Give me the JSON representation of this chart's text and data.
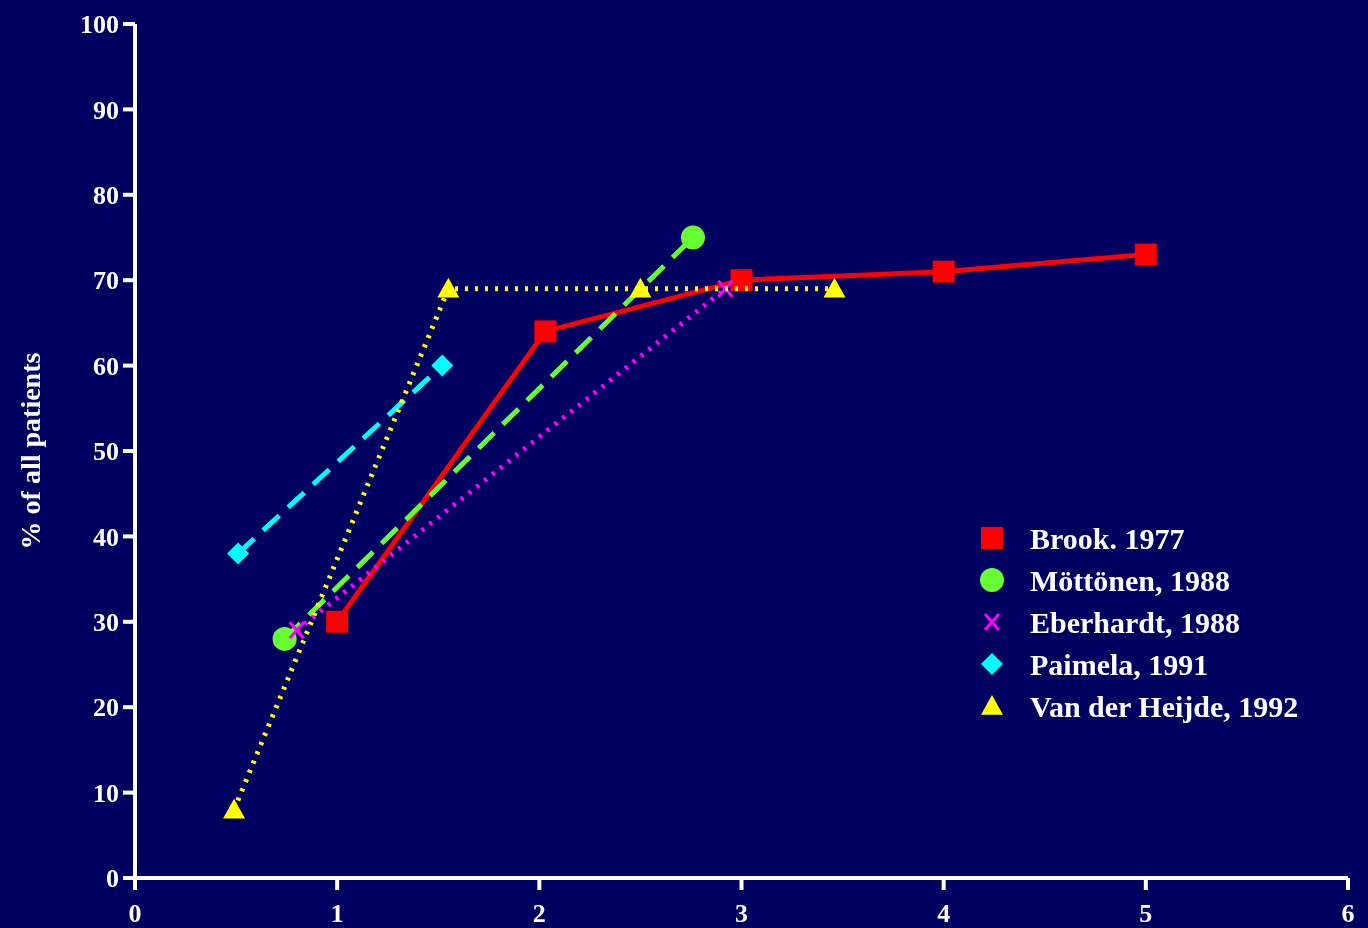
{
  "chart_data": {
    "type": "line",
    "ylabel": "% of all patients",
    "xlim": [
      0,
      6
    ],
    "ylim": [
      0,
      100
    ],
    "xticks": [
      0,
      1,
      2,
      3,
      4,
      5,
      6
    ],
    "yticks": [
      0,
      10,
      20,
      30,
      40,
      50,
      60,
      70,
      80,
      90,
      100
    ],
    "grid": false,
    "legend": "right",
    "series": [
      {
        "name": "Brook. 1977",
        "color": "#ff0000",
        "marker": "square",
        "line_style": "solid",
        "x": [
          1.0,
          2.03,
          3.0,
          4.0,
          5.0
        ],
        "values": [
          30,
          64,
          70,
          71,
          73
        ]
      },
      {
        "name": "Möttönen, 1988",
        "color": "#66ff33",
        "marker": "circle",
        "line_style": "dashed",
        "x": [
          0.74,
          2.76
        ],
        "values": [
          28,
          75
        ]
      },
      {
        "name": "Eberhardt, 1988",
        "color": "#ff00ff",
        "marker": "cross",
        "line_style": "dotted",
        "x": [
          0.8,
          2.92
        ],
        "values": [
          29,
          69
        ]
      },
      {
        "name": "Paimela, 1991",
        "color": "#00ffff",
        "marker": "diamond",
        "line_style": "dashed",
        "x": [
          0.51,
          1.52
        ],
        "values": [
          38,
          60
        ]
      },
      {
        "name": "Van der Heijde, 1992",
        "color": "#ffff00",
        "marker": "triangle",
        "line_style": "dotted",
        "x": [
          0.49,
          1.55,
          2.5,
          3.46
        ],
        "values": [
          8,
          69,
          69,
          69
        ]
      }
    ]
  }
}
